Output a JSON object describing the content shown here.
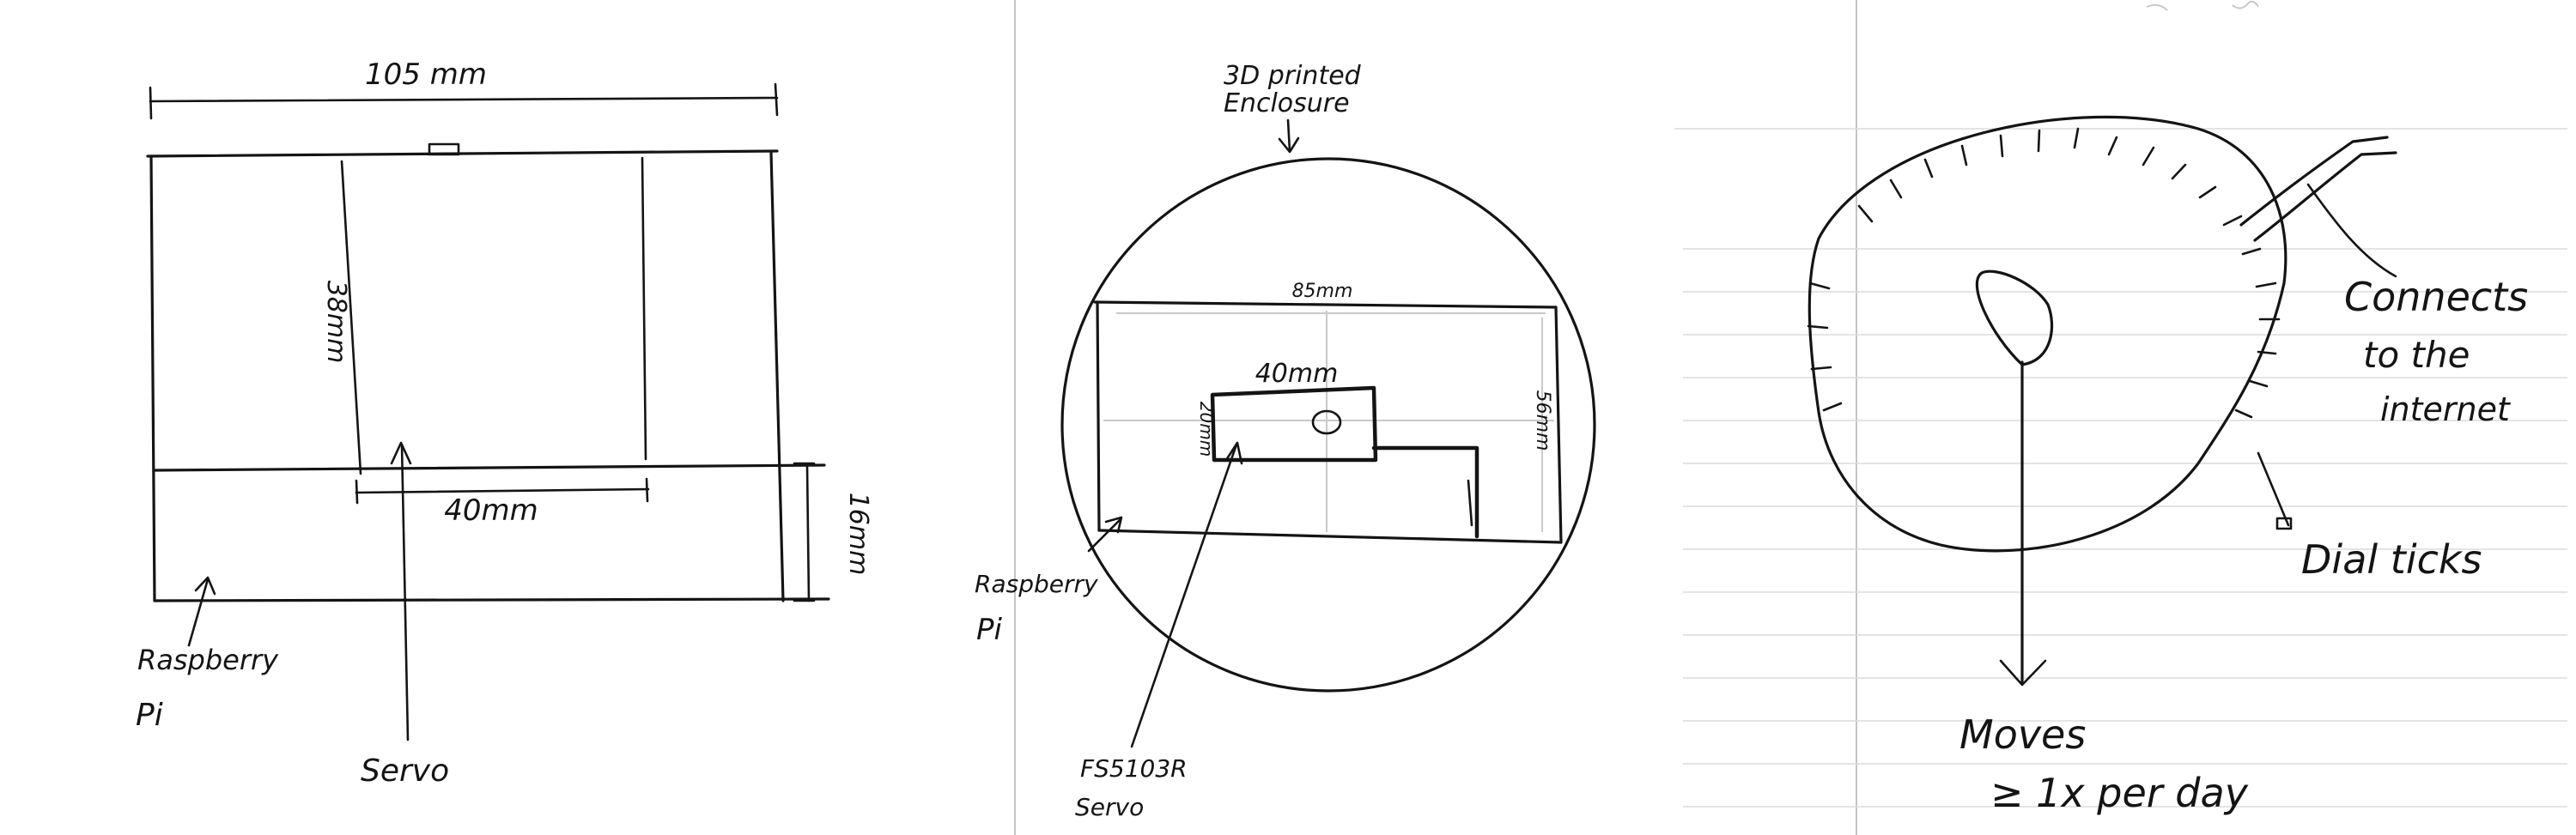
{
  "left_sketch": {
    "width_label": "105 mm",
    "height_label": "38mm",
    "servo_width_label": "40mm",
    "depth_label": "16mm",
    "pi_label_line1": "Raspberry",
    "pi_label_line2": "Pi",
    "servo_label": "Servo"
  },
  "middle_sketch": {
    "enclosure_line1": "3D printed",
    "enclosure_line2": "Enclosure",
    "width_label": "85mm",
    "servo_width_label": "40mm",
    "servo_height_label": "20mm",
    "height_label": "56mm",
    "pi_label_line1": "Raspberry",
    "pi_label_line2": "Pi",
    "servo_model_line1": "FS5103R",
    "servo_model_line2": "Servo"
  },
  "right_sketch": {
    "cable_line1": "Connects",
    "cable_line2": "to the",
    "cable_line3": "internet",
    "ticks_label": "Dial ticks",
    "hand_line1": "Moves",
    "hand_line2": "≥ 1x per day"
  },
  "colors": {
    "ink": "#141414",
    "paper": "#ffffff",
    "rule": "#dcdcdc"
  }
}
